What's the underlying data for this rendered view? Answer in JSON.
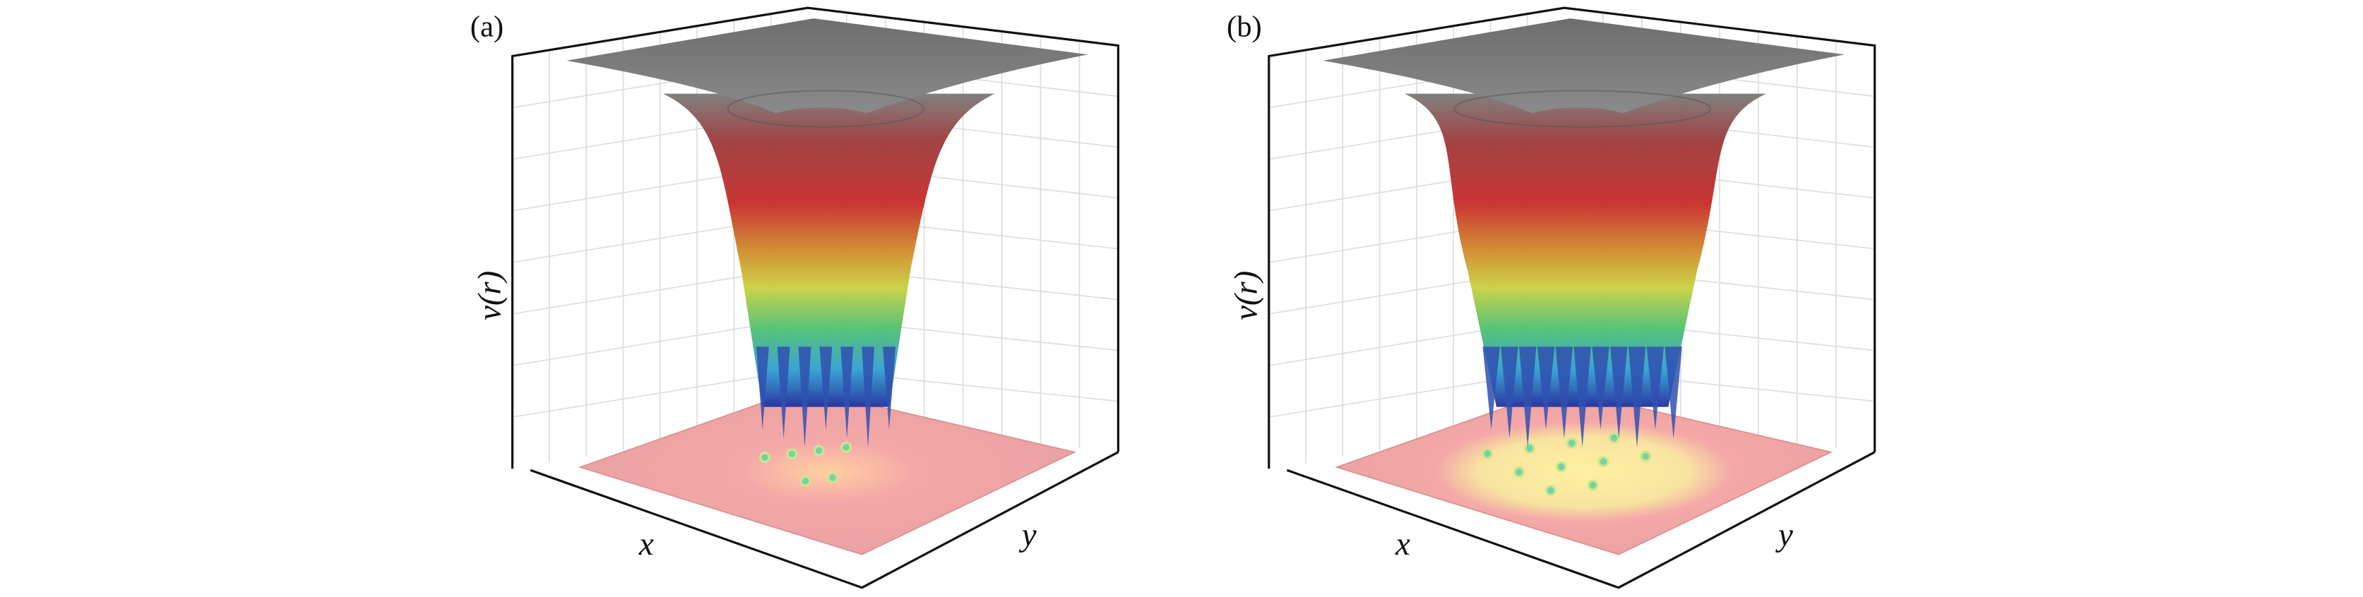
{
  "panels": [
    {
      "label": "(a)",
      "x_label": "x",
      "y_label": "y",
      "z_label": "v(r)"
    },
    {
      "label": "(b)",
      "x_label": "x",
      "y_label": "y",
      "z_label": "v(r)"
    }
  ]
}
